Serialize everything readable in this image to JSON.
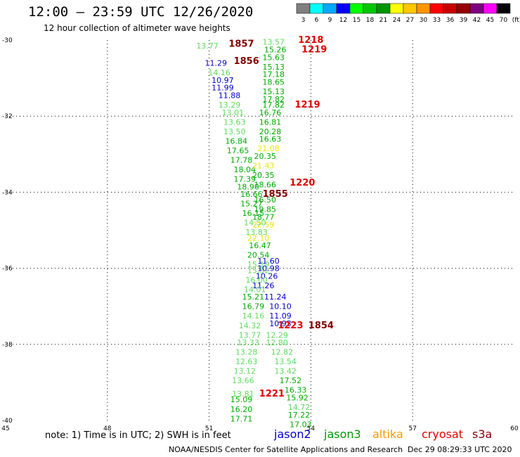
{
  "header": {
    "title": "12:00 – 23:59 UTC 12/26/2020",
    "subtitle": "12 hour collection of altimeter wave heights"
  },
  "colorbar": {
    "labels": [
      "3",
      "6",
      "9",
      "12",
      "15",
      "18",
      "21",
      "24",
      "27",
      "30",
      "33",
      "36",
      "39",
      "42",
      "45",
      "70",
      "(ft)"
    ],
    "colors": [
      "#808080",
      "#00ffff",
      "#00a8ff",
      "#0000ff",
      "#00ff00",
      "#00c800",
      "#009600",
      "#ffff00",
      "#ffc800",
      "#ff9600",
      "#ff0000",
      "#c80000",
      "#960000",
      "#800080",
      "#ff00ff",
      "#000000"
    ]
  },
  "footer": {
    "note": "note:  1) Time is in UTC;  2) SWH is in feet",
    "credit": "NOAA/NESDIS Center for Satellite Applications and Research",
    "timestamp": "Dec 29 08:29:33 UTC 2020"
  },
  "satellites": [
    {
      "name": "jason2",
      "color": "#0000cc"
    },
    {
      "name": "jason3",
      "color": "#009600"
    },
    {
      "name": "altika",
      "color": "#ff9600"
    },
    {
      "name": "cryosat",
      "color": "#e00000"
    },
    {
      "name": "s3a",
      "color": "#800000"
    }
  ],
  "chart_data": {
    "type": "scatter",
    "title": "12:00 – 23:59 UTC 12/26/2020",
    "subtitle": "12 hour collection of altimeter wave heights",
    "xlim": [
      45,
      60
    ],
    "ylim": [
      -40,
      -30
    ],
    "x_ticks": [
      {
        "value": 45,
        "label": "45"
      },
      {
        "value": 48,
        "label": "48"
      },
      {
        "value": 51,
        "label": "51"
      },
      {
        "value": 54,
        "label": "54"
      },
      {
        "value": 57,
        "label": "57"
      },
      {
        "value": 60,
        "label": "60"
      }
    ],
    "y_ticks": [
      {
        "value": -30,
        "label": "-30"
      },
      {
        "value": -32,
        "label": "-32"
      },
      {
        "value": -34,
        "label": "-34"
      },
      {
        "value": -36,
        "label": "-36"
      },
      {
        "value": -38,
        "label": "-38"
      },
      {
        "value": -40,
        "label": "-40"
      }
    ],
    "grid": true,
    "points": [
      {
        "x": 50.95,
        "y": -30.15,
        "text": "13.77",
        "color": "#5ddc5d"
      },
      {
        "x": 51.95,
        "y": -30.1,
        "text": "1857",
        "color": "#800000"
      },
      {
        "x": 52.9,
        "y": -30.05,
        "text": "13.57",
        "color": "#5ddc5d"
      },
      {
        "x": 54.0,
        "y": -30.0,
        "text": "1218",
        "color": "#e00000"
      },
      {
        "x": 52.95,
        "y": -30.25,
        "text": "15.26",
        "color": "#00aa00"
      },
      {
        "x": 54.1,
        "y": -30.25,
        "text": "1219",
        "color": "#e00000"
      },
      {
        "x": 52.9,
        "y": -30.45,
        "text": "15.63",
        "color": "#00aa00"
      },
      {
        "x": 51.2,
        "y": -30.6,
        "text": "11.29",
        "color": "#0000cc"
      },
      {
        "x": 52.1,
        "y": -30.55,
        "text": "1856",
        "color": "#800000"
      },
      {
        "x": 52.9,
        "y": -30.7,
        "text": "15.13",
        "color": "#00aa00"
      },
      {
        "x": 51.3,
        "y": -30.85,
        "text": "14.16",
        "color": "#5ddc5d"
      },
      {
        "x": 52.9,
        "y": -30.9,
        "text": "17.18",
        "color": "#00aa00"
      },
      {
        "x": 51.4,
        "y": -31.05,
        "text": "10.97",
        "color": "#0000cc"
      },
      {
        "x": 52.9,
        "y": -31.1,
        "text": "18.65",
        "color": "#00aa00"
      },
      {
        "x": 51.4,
        "y": -31.25,
        "text": "11.99",
        "color": "#0000cc"
      },
      {
        "x": 52.9,
        "y": -31.35,
        "text": "15.13",
        "color": "#00aa00"
      },
      {
        "x": 51.6,
        "y": -31.45,
        "text": "11.88",
        "color": "#0000cc"
      },
      {
        "x": 52.9,
        "y": -31.55,
        "text": "17.82",
        "color": "#00aa00"
      },
      {
        "x": 51.6,
        "y": -31.7,
        "text": "13.29",
        "color": "#5ddc5d"
      },
      {
        "x": 52.9,
        "y": -31.7,
        "text": "17.82",
        "color": "#00aa00"
      },
      {
        "x": 53.9,
        "y": -31.7,
        "text": "1219",
        "color": "#e00000"
      },
      {
        "x": 51.7,
        "y": -31.9,
        "text": "13.01",
        "color": "#5ddc5d"
      },
      {
        "x": 52.8,
        "y": -31.9,
        "text": "16.76",
        "color": "#00aa00"
      },
      {
        "x": 51.75,
        "y": -32.15,
        "text": "13.63",
        "color": "#5ddc5d"
      },
      {
        "x": 52.8,
        "y": -32.15,
        "text": "16.81",
        "color": "#00aa00"
      },
      {
        "x": 51.75,
        "y": -32.4,
        "text": "13.50",
        "color": "#5ddc5d"
      },
      {
        "x": 52.8,
        "y": -32.4,
        "text": "20.28",
        "color": "#00aa00"
      },
      {
        "x": 51.8,
        "y": -32.65,
        "text": "16.84",
        "color": "#00aa00"
      },
      {
        "x": 52.8,
        "y": -32.6,
        "text": "16.63",
        "color": "#00aa00"
      },
      {
        "x": 51.85,
        "y": -32.9,
        "text": "17.65",
        "color": "#00aa00"
      },
      {
        "x": 52.75,
        "y": -32.85,
        "text": "21.08",
        "color": "#e8e800"
      },
      {
        "x": 51.95,
        "y": -33.15,
        "text": "17.78",
        "color": "#00aa00"
      },
      {
        "x": 52.65,
        "y": -33.05,
        "text": "20.35",
        "color": "#00aa00"
      },
      {
        "x": 52.05,
        "y": -33.4,
        "text": "18.04",
        "color": "#00aa00"
      },
      {
        "x": 52.6,
        "y": -33.3,
        "text": "21.43",
        "color": "#e8e800"
      },
      {
        "x": 52.05,
        "y": -33.65,
        "text": "17.39",
        "color": "#00aa00"
      },
      {
        "x": 52.6,
        "y": -33.55,
        "text": "20.35",
        "color": "#00aa00"
      },
      {
        "x": 52.15,
        "y": -33.85,
        "text": "18.90",
        "color": "#00aa00"
      },
      {
        "x": 52.65,
        "y": -33.8,
        "text": "18.66",
        "color": "#00aa00"
      },
      {
        "x": 53.75,
        "y": -33.75,
        "text": "1220",
        "color": "#e00000"
      },
      {
        "x": 52.25,
        "y": -34.05,
        "text": "16.66",
        "color": "#00aa00"
      },
      {
        "x": 52.95,
        "y": -34.05,
        "text": "1855",
        "color": "#800000"
      },
      {
        "x": 52.25,
        "y": -34.3,
        "text": "15.27",
        "color": "#00aa00"
      },
      {
        "x": 52.65,
        "y": -34.2,
        "text": "16.50",
        "color": "#00aa00"
      },
      {
        "x": 52.3,
        "y": -34.55,
        "text": "16.15",
        "color": "#00aa00"
      },
      {
        "x": 52.65,
        "y": -34.45,
        "text": "19.85",
        "color": "#00aa00"
      },
      {
        "x": 52.35,
        "y": -34.8,
        "text": "14.50",
        "color": "#5ddc5d"
      },
      {
        "x": 52.6,
        "y": -34.65,
        "text": "18.77",
        "color": "#00aa00"
      },
      {
        "x": 52.6,
        "y": -34.85,
        "text": "22.59",
        "color": "#e8e800"
      },
      {
        "x": 52.4,
        "y": -35.05,
        "text": "13.83",
        "color": "#5ddc5d"
      },
      {
        "x": 52.45,
        "y": -35.2,
        "text": "22.10",
        "color": "#e8e800"
      },
      {
        "x": 52.5,
        "y": -35.4,
        "text": "16.47",
        "color": "#00aa00"
      },
      {
        "x": 52.45,
        "y": -35.65,
        "text": "20.54",
        "color": "#00aa00"
      },
      {
        "x": 52.75,
        "y": -35.8,
        "text": "11.60",
        "color": "#0000cc"
      },
      {
        "x": 52.45,
        "y": -35.9,
        "text": "15.19",
        "color": "#5ddc5d"
      },
      {
        "x": 52.75,
        "y": -36.0,
        "text": "10.98",
        "color": "#0000cc"
      },
      {
        "x": 52.45,
        "y": -36.05,
        "text": "15.52",
        "color": "#5ddc5d"
      },
      {
        "x": 52.7,
        "y": -36.2,
        "text": "10.26",
        "color": "#0000cc"
      },
      {
        "x": 52.4,
        "y": -36.3,
        "text": "16.00",
        "color": "#5ddc5d"
      },
      {
        "x": 52.6,
        "y": -36.45,
        "text": "11.26",
        "color": "#0000cc"
      },
      {
        "x": 52.35,
        "y": -36.55,
        "text": "14.01",
        "color": "#5ddc5d"
      },
      {
        "x": 52.3,
        "y": -36.75,
        "text": "15.21",
        "color": "#00aa00"
      },
      {
        "x": 52.95,
        "y": -36.75,
        "text": "11.24",
        "color": "#0000cc"
      },
      {
        "x": 52.3,
        "y": -37.0,
        "text": "16.79",
        "color": "#00aa00"
      },
      {
        "x": 53.1,
        "y": -37.0,
        "text": "10.10",
        "color": "#0000cc"
      },
      {
        "x": 52.3,
        "y": -37.25,
        "text": "14.16",
        "color": "#5ddc5d"
      },
      {
        "x": 53.1,
        "y": -37.25,
        "text": "11.09",
        "color": "#0000cc"
      },
      {
        "x": 53.1,
        "y": -37.45,
        "text": "10.93",
        "color": "#0000cc"
      },
      {
        "x": 52.2,
        "y": -37.5,
        "text": "14.32",
        "color": "#5ddc5d"
      },
      {
        "x": 53.4,
        "y": -37.5,
        "text": "1223",
        "color": "#e00000"
      },
      {
        "x": 54.3,
        "y": -37.5,
        "text": "1854",
        "color": "#800000"
      },
      {
        "x": 52.2,
        "y": -37.75,
        "text": "13.77",
        "color": "#5ddc5d"
      },
      {
        "x": 53.0,
        "y": -37.75,
        "text": "12.29",
        "color": "#5ddc5d"
      },
      {
        "x": 52.15,
        "y": -37.95,
        "text": "13.33",
        "color": "#5ddc5d"
      },
      {
        "x": 53.0,
        "y": -37.95,
        "text": "12.80",
        "color": "#5ddc5d"
      },
      {
        "x": 52.1,
        "y": -38.2,
        "text": "13.28",
        "color": "#5ddc5d"
      },
      {
        "x": 53.15,
        "y": -38.2,
        "text": "12.82",
        "color": "#5ddc5d"
      },
      {
        "x": 52.1,
        "y": -38.45,
        "text": "12.63",
        "color": "#5ddc5d"
      },
      {
        "x": 53.25,
        "y": -38.45,
        "text": "13.54",
        "color": "#5ddc5d"
      },
      {
        "x": 52.05,
        "y": -38.7,
        "text": "13.12",
        "color": "#5ddc5d"
      },
      {
        "x": 53.25,
        "y": -38.7,
        "text": "13.42",
        "color": "#5ddc5d"
      },
      {
        "x": 52.0,
        "y": -38.95,
        "text": "13.66",
        "color": "#5ddc5d"
      },
      {
        "x": 53.4,
        "y": -38.95,
        "text": "17.52",
        "color": "#00aa00"
      },
      {
        "x": 53.55,
        "y": -39.2,
        "text": "16.33",
        "color": "#00aa00"
      },
      {
        "x": 52.0,
        "y": -39.3,
        "text": "13.81",
        "color": "#5ddc5d"
      },
      {
        "x": 52.85,
        "y": -39.3,
        "text": "1221",
        "color": "#e00000"
      },
      {
        "x": 53.6,
        "y": -39.4,
        "text": "15.92",
        "color": "#00aa00"
      },
      {
        "x": 51.95,
        "y": -39.45,
        "text": "15.09",
        "color": "#00aa00"
      },
      {
        "x": 53.65,
        "y": -39.65,
        "text": "14.72",
        "color": "#5ddc5d"
      },
      {
        "x": 51.95,
        "y": -39.7,
        "text": "16.20",
        "color": "#00aa00"
      },
      {
        "x": 53.65,
        "y": -39.85,
        "text": "17.22",
        "color": "#00aa00"
      },
      {
        "x": 51.95,
        "y": -39.95,
        "text": "17.71",
        "color": "#00aa00"
      },
      {
        "x": 53.7,
        "y": -40.1,
        "text": "17.03",
        "color": "#00aa00"
      }
    ]
  }
}
